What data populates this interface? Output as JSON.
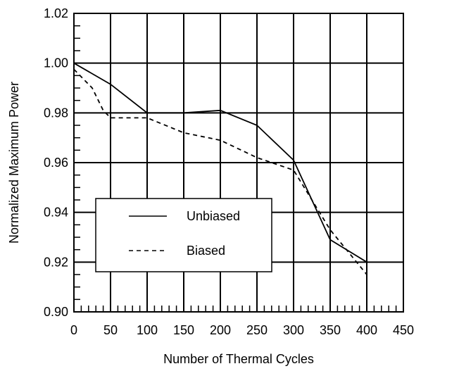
{
  "chart_data": {
    "type": "line",
    "title": "",
    "xlabel": "Number of Thermal Cycles",
    "ylabel": "Normalized Maximum Power",
    "xlim": [
      0,
      450
    ],
    "ylim": [
      0.9,
      1.02
    ],
    "x_ticks": [
      0,
      50,
      100,
      150,
      200,
      250,
      300,
      350,
      400,
      450
    ],
    "x_tick_labels": [
      "0",
      "50",
      "100",
      "150",
      "200",
      "250",
      "300",
      "350",
      "400",
      "450"
    ],
    "y_ticks": [
      0.9,
      0.92,
      0.94,
      0.96,
      0.98,
      1.0,
      1.02
    ],
    "y_tick_labels": [
      "0.90",
      "0.92",
      "0.94",
      "0.96",
      "0.98",
      "1.00",
      "1.02"
    ],
    "x_minor_step": 10,
    "y_minor_step": 0.005,
    "grid": true,
    "legend_position": "bottom-left",
    "series": [
      {
        "name": "Unbiased",
        "style": "solid",
        "x": [
          0,
          50,
          100,
          150,
          200,
          250,
          300,
          350,
          400
        ],
        "y": [
          1.0,
          0.9915,
          0.98,
          0.98,
          0.981,
          0.975,
          0.961,
          0.929,
          0.92
        ]
      },
      {
        "name": "Biased",
        "style": "dashed",
        "x": [
          0,
          25,
          40,
          50,
          100,
          150,
          200,
          250,
          290,
          300,
          350,
          400
        ],
        "y": [
          0.9975,
          0.99,
          0.981,
          0.978,
          0.978,
          0.972,
          0.969,
          0.962,
          0.958,
          0.957,
          0.933,
          0.915
        ]
      }
    ]
  }
}
